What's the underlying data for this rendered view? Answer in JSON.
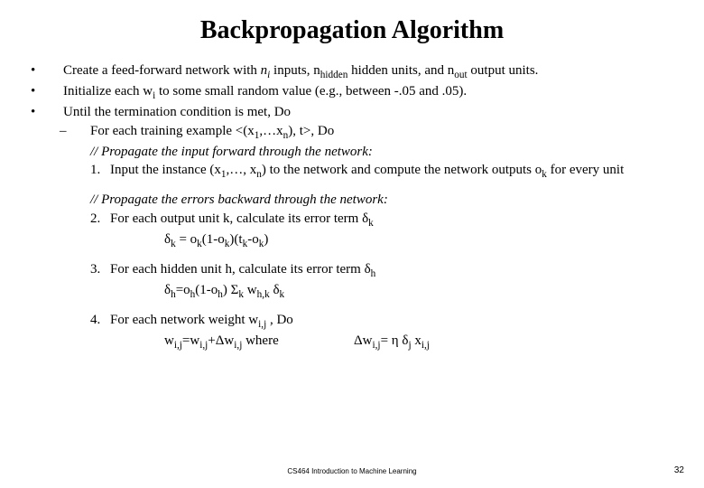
{
  "title": "Backpropagation Algorithm",
  "b1_pre": "Create a feed-forward network with ",
  "b1_ni": "n",
  "b1_ni_sub": "i",
  "b1_mid1": " inputs, n",
  "b1_hidden": "hidden",
  "b1_mid2": " hidden units, and n",
  "b1_out": "out",
  "b1_end": " output units.",
  "b2_pre": "Initialize each w",
  "b2_sub": "i",
  "b2_end": " to some small random value (e.g., between -.05 and .05).",
  "b3": "Until the termination condition is met, Do",
  "sub1_pre": "For each training example  <(x",
  "sub1_1": "1",
  "sub1_mid": ",…x",
  "sub1_n": "n",
  "sub1_end": "), t>,  Do",
  "comment1": "//  Propagate the input forward through the network:",
  "step1_pre": "Input the instance (x",
  "step1_1": "1",
  "step1_mid": ",…, x",
  "step1_n": "n",
  "step1_mid2": ") to the network and compute the network outputs o",
  "step1_k": "k",
  "step1_end": " for every unit",
  "comment2": "//  Propagate the errors backward through the network:",
  "step2_pre": "For each output unit k, calculate its error term δ",
  "step2_k": "k",
  "formula2_l": "δ",
  "formula2_k1": "k",
  "formula2_m1": " = o",
  "formula2_k2": "k",
  "formula2_m2": "(1-o",
  "formula2_k3": "k",
  "formula2_m3": ")(t",
  "formula2_k4": "k",
  "formula2_m4": "-o",
  "formula2_k5": "k",
  "formula2_end": ")",
  "step3_pre": "For each hidden unit h, calculate its error term δ",
  "step3_h": "h",
  "formula3_l": "δ",
  "formula3_h1": "h",
  "formula3_m1": "=o",
  "formula3_h2": "h",
  "formula3_m2": "(1-o",
  "formula3_h3": "h",
  "formula3_m3": ") Σ",
  "formula3_k1": "k",
  "formula3_m4": " w",
  "formula3_hk": "h,k",
  "formula3_m5": " δ",
  "formula3_k2": "k",
  "step4_pre": "For each network weight w",
  "step4_ij": "i,j",
  "step4_end": " , Do",
  "formula4a_l": "w",
  "formula4a_ij1": "i,j",
  "formula4a_m1": "=w",
  "formula4a_ij2": "i,j",
  "formula4a_m2": "+Δw",
  "formula4a_ij3": "i,j",
  "formula4a_where": "   where",
  "formula4b_l": "Δw",
  "formula4b_ij": "i,j",
  "formula4b_m1": "= η  δ",
  "formula4b_j": "j",
  "formula4b_m2": " x",
  "formula4b_ij2": "i,j",
  "footer": "CS464 Introduction to Machine Learning",
  "pagenum": "32",
  "num1": "1.",
  "num2": "2.",
  "num3": "3.",
  "num4": "4.",
  "dash": "–",
  "dot": "•"
}
